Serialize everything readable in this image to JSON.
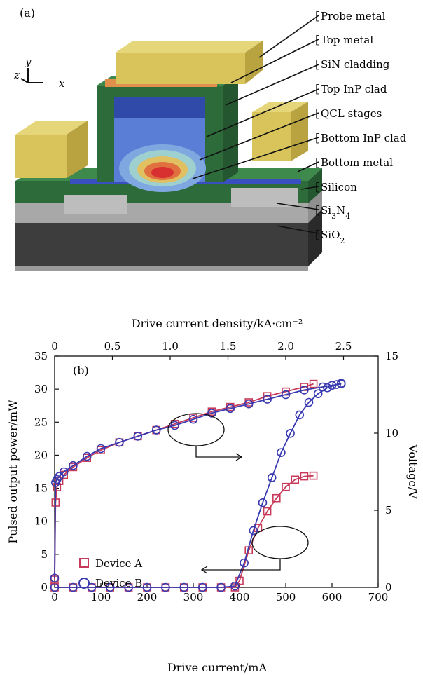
{
  "panel_a": {
    "label": "(a)",
    "axes": {
      "z": "z",
      "y": "y",
      "x": "x"
    },
    "layers": [
      "Probe metal",
      "Top metal",
      "SiN cladding",
      "Top InP clad",
      "QCL stages",
      "Bottom InP clad",
      "Bottom metal",
      "Silicon",
      "Si3N4",
      "SiO2"
    ],
    "colors": {
      "metal": "#d8c45a",
      "sin_cladding": "#2e6b3a",
      "top_metal_orange": "#e0904a",
      "inp_clad": "#3a64c8",
      "silicon": "#a8a8a8",
      "sio2": "#3f3f3f",
      "mode_hot": "#d83030"
    }
  },
  "panel_b": {
    "label": "(b)",
    "top_axis_label": "Drive current density/kA·cm⁻²",
    "bottom_axis_label": "Drive current/mA",
    "left_axis_label": "Pulsed output power/mW",
    "right_axis_label": "Voltage/V",
    "legend": [
      {
        "name": "Device A",
        "color": "#c83a5a",
        "marker": "square"
      },
      {
        "name": "Device B",
        "color": "#3a3ab0",
        "marker": "circle"
      }
    ]
  },
  "chart_data": {
    "type": "line",
    "x_ticks": [
      0,
      100,
      200,
      300,
      400,
      500,
      600,
      700
    ],
    "x_top_ticks": [
      "0",
      "0.5",
      "1.0",
      "1.5",
      "2.0",
      "2.5"
    ],
    "x_top_values": [
      0,
      0.5,
      1.0,
      1.5,
      2.0,
      2.5
    ],
    "y_left_ticks": [
      0,
      5,
      10,
      15,
      20,
      25,
      30,
      35
    ],
    "y_right_ticks": [
      0,
      5,
      10,
      15
    ],
    "xlim": [
      0,
      700
    ],
    "ylim_left": [
      0,
      35
    ],
    "ylim_right": [
      0,
      15
    ],
    "x_top_lim": [
      0,
      2.8
    ],
    "series": [
      {
        "name": "Device A",
        "axis": "left",
        "marker": "square",
        "x": [
          0,
          40,
          80,
          120,
          160,
          200,
          240,
          280,
          320,
          360,
          390,
          400,
          420,
          440,
          460,
          480,
          500,
          520,
          540,
          560
        ],
        "y": [
          0,
          0,
          0,
          0,
          0,
          0,
          0,
          0,
          0,
          0,
          0,
          1,
          5.6,
          9,
          11.5,
          13.5,
          15.2,
          16.3,
          16.8,
          16.9
        ]
      },
      {
        "name": "Device B",
        "axis": "left",
        "marker": "circle",
        "x": [
          0,
          40,
          80,
          120,
          160,
          200,
          240,
          280,
          320,
          360,
          390,
          410,
          430,
          450,
          470,
          490,
          510,
          530,
          550,
          570,
          590,
          610,
          620
        ],
        "y": [
          0,
          0,
          0,
          0,
          0,
          0,
          0,
          0,
          0,
          0,
          0.2,
          3.7,
          8.6,
          12.8,
          16.6,
          20.4,
          23.3,
          26.1,
          28.0,
          29.3,
          30.2,
          30.7,
          30.9
        ]
      },
      {
        "name": "Device A",
        "axis": "right",
        "marker": "square",
        "x": [
          0,
          2,
          5,
          10,
          20,
          40,
          70,
          100,
          140,
          180,
          220,
          260,
          300,
          340,
          380,
          420,
          460,
          500,
          540,
          560
        ],
        "y": [
          0.5,
          5.5,
          6.5,
          6.9,
          7.3,
          7.8,
          8.4,
          8.9,
          9.4,
          9.8,
          10.2,
          10.6,
          11.0,
          11.4,
          11.7,
          12.0,
          12.4,
          12.7,
          13.0,
          13.2
        ]
      },
      {
        "name": "Device B",
        "axis": "right",
        "marker": "circle",
        "x": [
          0,
          2,
          5,
          10,
          20,
          40,
          70,
          100,
          140,
          180,
          220,
          260,
          300,
          340,
          380,
          420,
          460,
          500,
          540,
          580,
          600,
          620
        ],
        "y": [
          0.6,
          6.8,
          7.0,
          7.2,
          7.5,
          7.9,
          8.5,
          9.0,
          9.4,
          9.8,
          10.2,
          10.5,
          10.9,
          11.3,
          11.6,
          11.9,
          12.2,
          12.5,
          12.8,
          13.0,
          13.1,
          13.2
        ]
      }
    ]
  }
}
